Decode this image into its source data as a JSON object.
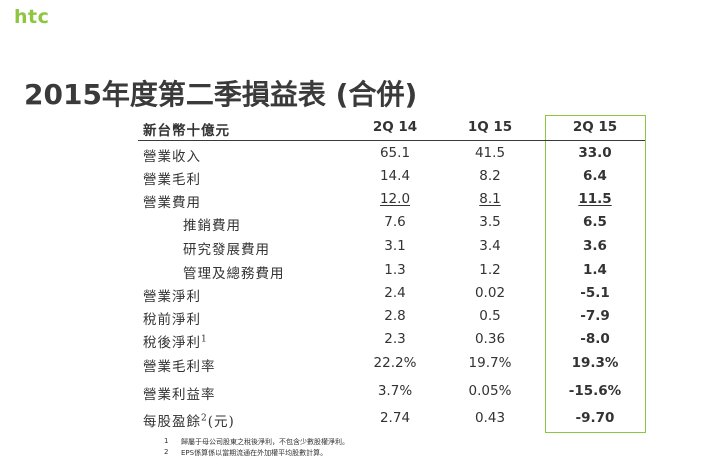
{
  "brand": {
    "logo": "htc"
  },
  "title": "2015年度第二季損益表 (合併)",
  "table": {
    "unit_label": "新台幣十億元",
    "columns": [
      "2Q 14",
      "1Q 15",
      "2Q 15"
    ],
    "highlight_color": "#8dc63f",
    "rows": [
      {
        "label": "營業收入",
        "sup": "",
        "suffix": "",
        "values": [
          "65.1",
          "41.5",
          "33.0"
        ]
      },
      {
        "label": "營業毛利",
        "sup": "",
        "suffix": "",
        "values": [
          "14.4",
          "8.2",
          "6.4"
        ]
      },
      {
        "label": "營業費用",
        "sup": "",
        "suffix": "",
        "values": [
          "12.0",
          "8.1",
          "11.5"
        ]
      },
      {
        "label": "推銷費用",
        "sup": "",
        "suffix": "",
        "values": [
          "7.6",
          "3.5",
          "6.5"
        ]
      },
      {
        "label": "研究發展費用",
        "sup": "",
        "suffix": "",
        "values": [
          "3.1",
          "3.4",
          "3.6"
        ]
      },
      {
        "label": "管理及總務費用",
        "sup": "",
        "suffix": "",
        "values": [
          "1.3",
          "1.2",
          "1.4"
        ]
      },
      {
        "label": "營業淨利",
        "sup": "",
        "suffix": "",
        "values": [
          "2.4",
          "0.02",
          "-5.1"
        ]
      },
      {
        "label": "稅前淨利",
        "sup": "",
        "suffix": "",
        "values": [
          "2.8",
          "0.5",
          "-7.9"
        ]
      },
      {
        "label": "稅後淨利",
        "sup": "1",
        "suffix": "",
        "values": [
          "2.3",
          "0.36",
          "-8.0"
        ]
      },
      {
        "label": "營業毛利率",
        "sup": "",
        "suffix": "",
        "values": [
          "22.2%",
          "19.7%",
          "19.3%"
        ]
      },
      {
        "label": "營業利益率",
        "sup": "",
        "suffix": "",
        "values": [
          "3.7%",
          "0.05%",
          "-15.6%"
        ]
      },
      {
        "label": "每股盈餘",
        "sup": "2",
        "suffix": "(元)",
        "values": [
          "2.74",
          "0.43",
          "-9.70"
        ]
      }
    ]
  },
  "footnotes": [
    {
      "num": "1",
      "text": "歸屬于母公司股東之稅後淨利，不包含少數股權淨利。"
    },
    {
      "num": "2",
      "text": "EPS係算係以當期流通在外加權平均股數計算。"
    }
  ]
}
